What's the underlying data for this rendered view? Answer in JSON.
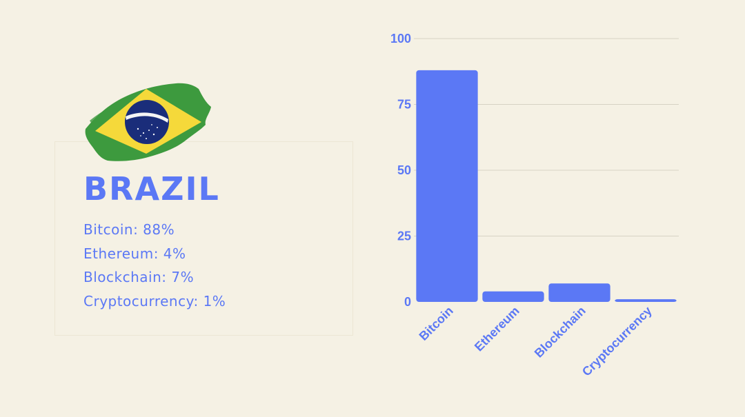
{
  "country": "BRAZIL",
  "stats": [
    "Bitcoin: 88%",
    "Ethereum: 4%",
    "Blockchain: 7%",
    "Cryptocurrency: 1%"
  ],
  "colors": {
    "background": "#f5f1e4",
    "accent": "#5b78f5",
    "flag_green": "#3d9a3e",
    "flag_yellow": "#f5d93a",
    "flag_blue": "#1a2d7a"
  },
  "chart_data": {
    "type": "bar",
    "categories": [
      "Bitcoin",
      "Ethereum",
      "Blockchain",
      "Cryptocurrency"
    ],
    "values": [
      88,
      4,
      7,
      1
    ],
    "yticks": [
      0,
      25,
      50,
      75,
      100
    ],
    "ylim": [
      0,
      100
    ],
    "grid": true,
    "bar_color": "#5b78f5"
  }
}
